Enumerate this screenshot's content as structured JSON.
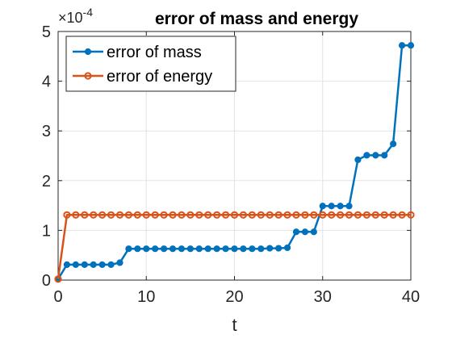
{
  "chart_data": {
    "type": "line",
    "title": "error of mass and energy",
    "xlabel": "t",
    "ylabel": "",
    "xlim": [
      0,
      40
    ],
    "ylim": [
      0,
      5
    ],
    "xticks": [
      "0",
      "10",
      "20",
      "30",
      "40"
    ],
    "yticks": [
      "0",
      "1",
      "2",
      "3",
      "4",
      "5"
    ],
    "y_exponent_prefix": "×10",
    "y_exponent": "-4",
    "grid": true,
    "legend_location": "top-left",
    "x": [
      0,
      1,
      2,
      3,
      4,
      5,
      6,
      7,
      8,
      9,
      10,
      11,
      12,
      13,
      14,
      15,
      16,
      17,
      18,
      19,
      20,
      21,
      22,
      23,
      24,
      25,
      26,
      27,
      28,
      29,
      30,
      31,
      32,
      33,
      34,
      35,
      36,
      37,
      38,
      39,
      40
    ],
    "series": [
      {
        "name": "error of mass",
        "color": "#0072BD",
        "marker": "filled-dot",
        "values": [
          0.02,
          0.31,
          0.31,
          0.31,
          0.31,
          0.31,
          0.31,
          0.35,
          0.63,
          0.63,
          0.63,
          0.63,
          0.63,
          0.63,
          0.63,
          0.63,
          0.63,
          0.63,
          0.63,
          0.63,
          0.63,
          0.63,
          0.63,
          0.63,
          0.64,
          0.64,
          0.65,
          0.97,
          0.97,
          0.97,
          1.49,
          1.49,
          1.49,
          1.49,
          2.42,
          2.51,
          2.51,
          2.51,
          2.74,
          4.72,
          4.72
        ]
      },
      {
        "name": "error of energy",
        "color": "#D95319",
        "marker": "open-circle",
        "values": [
          0.02,
          1.31,
          1.31,
          1.31,
          1.31,
          1.31,
          1.31,
          1.31,
          1.31,
          1.31,
          1.31,
          1.31,
          1.31,
          1.31,
          1.31,
          1.31,
          1.31,
          1.31,
          1.31,
          1.31,
          1.31,
          1.31,
          1.31,
          1.31,
          1.31,
          1.31,
          1.31,
          1.31,
          1.31,
          1.31,
          1.31,
          1.31,
          1.31,
          1.31,
          1.31,
          1.31,
          1.31,
          1.31,
          1.31,
          1.31,
          1.31
        ]
      }
    ]
  }
}
